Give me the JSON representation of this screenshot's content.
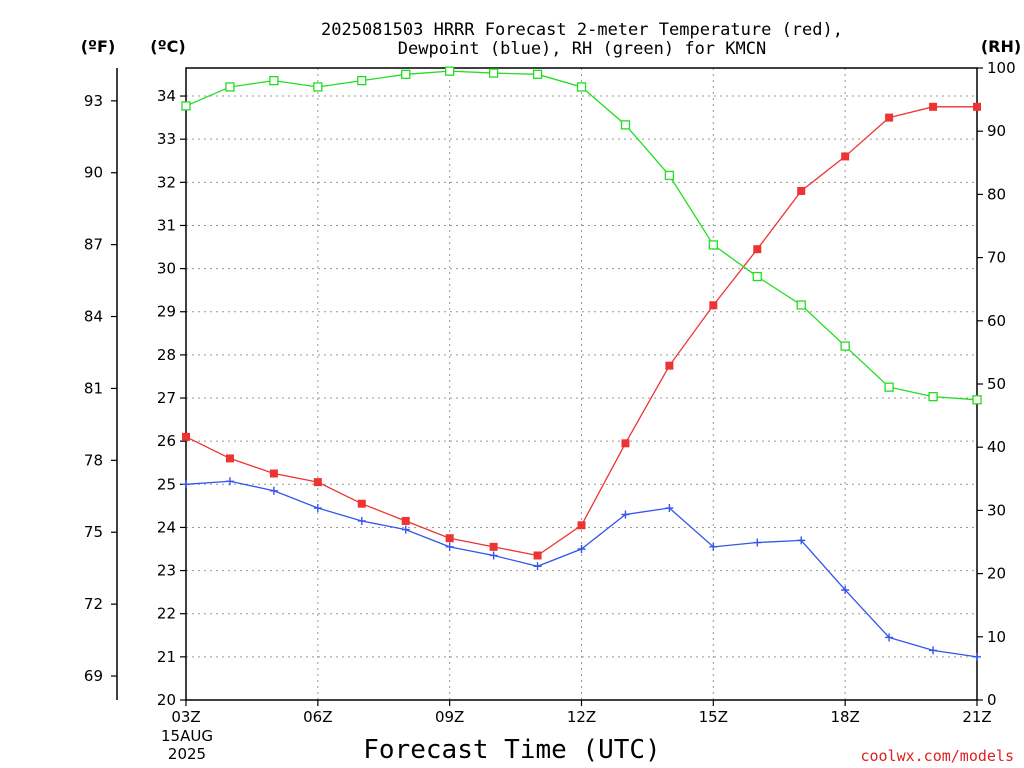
{
  "chart_data": {
    "type": "line",
    "title_lines": [
      "2025081503 HRRR Forecast 2-meter Temperature (red),",
      "Dewpoint (blue), RH (green) for KMCN"
    ],
    "xlabel": "Forecast Time (UTC)",
    "x_tick_labels": [
      "03Z",
      "06Z",
      "09Z",
      "12Z",
      "15Z",
      "18Z",
      "21Z"
    ],
    "x_date_lines": [
      "15AUG",
      "2025"
    ],
    "y_unit_f": "(ºF)",
    "y_unit_c": "(ºC)",
    "y_unit_rh": "(RH)",
    "y_ticks_c": [
      "20",
      "21",
      "22",
      "23",
      "24",
      "25",
      "26",
      "27",
      "28",
      "29",
      "30",
      "31",
      "32",
      "33",
      "34"
    ],
    "y_ticks_f": [
      "69",
      "72",
      "75",
      "78",
      "81",
      "84",
      "87",
      "90",
      "93"
    ],
    "y_ticks_rh": [
      "0",
      "10",
      "20",
      "30",
      "40",
      "50",
      "60",
      "70",
      "80",
      "90",
      "100"
    ],
    "ylim_c": [
      20,
      34.65
    ],
    "ylim_rh": [
      0,
      100
    ],
    "xlim_hours": [
      3,
      21
    ],
    "grid": true,
    "x_hours": [
      3,
      4,
      5,
      6,
      7,
      8,
      9,
      10,
      11,
      12,
      13,
      14,
      15,
      16,
      17,
      18,
      19,
      20,
      21
    ],
    "series": [
      {
        "name": "Temperature",
        "color": "#ee3333",
        "marker": "filled-square",
        "axis": "c",
        "values": [
          26.1,
          25.6,
          25.25,
          25.05,
          24.55,
          24.15,
          23.75,
          23.55,
          23.35,
          24.05,
          25.95,
          27.75,
          29.15,
          30.45,
          31.8,
          32.6,
          33.5,
          33.75,
          33.75
        ]
      },
      {
        "name": "Dewpoint",
        "color": "#3355ee",
        "marker": "plus",
        "axis": "c",
        "values": [
          25.0,
          25.07,
          24.85,
          24.45,
          24.15,
          23.95,
          23.55,
          23.35,
          23.1,
          23.5,
          24.3,
          24.45,
          23.55,
          23.65,
          23.7,
          22.55,
          21.45,
          21.15,
          21.0
        ]
      },
      {
        "name": "RH",
        "color": "#22dd22",
        "marker": "open-square",
        "axis": "rh",
        "values": [
          94,
          97,
          98,
          97,
          98,
          99,
          99.5,
          99.2,
          99,
          97,
          91,
          83,
          72,
          67,
          62.5,
          56,
          49.5,
          48,
          47.5
        ]
      }
    ]
  },
  "credit": "coolwx.com/models",
  "credit_color": "#dd2222"
}
